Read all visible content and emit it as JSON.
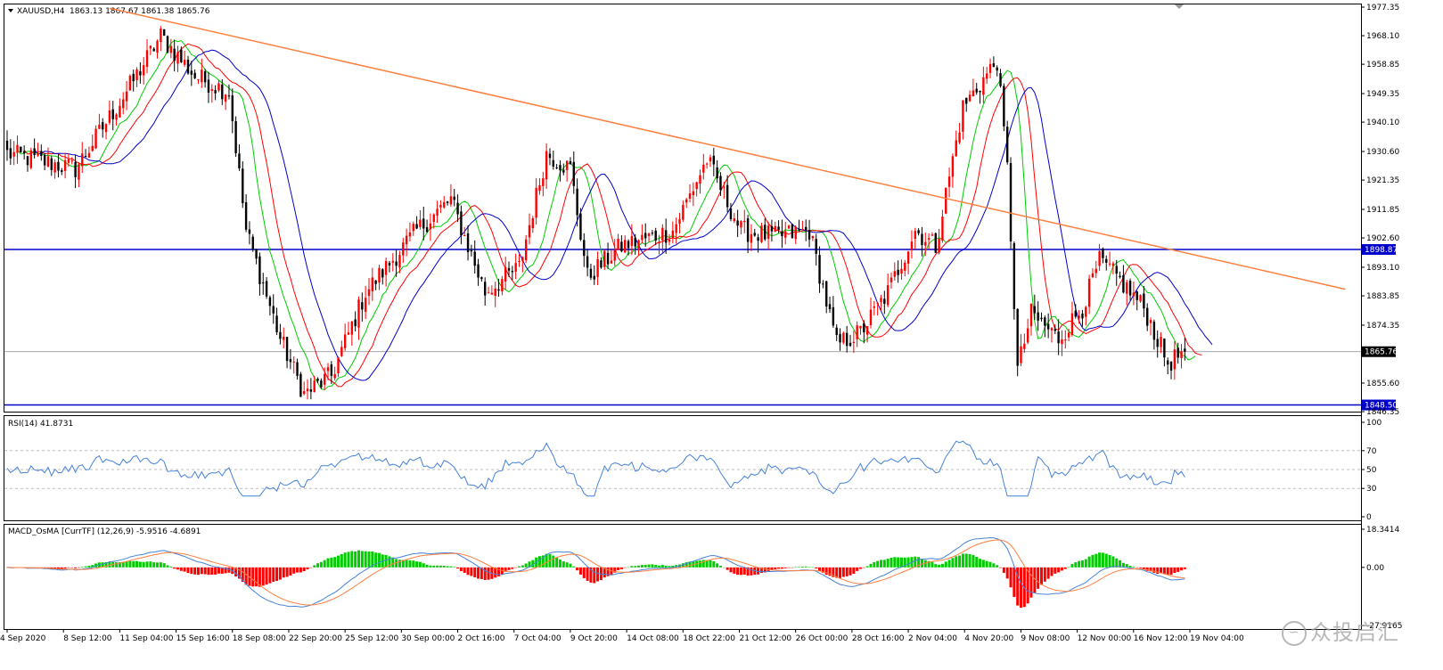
{
  "chart_data": [
    {
      "type": "candlestick",
      "title": "XAUUSD,H4",
      "ohlc_label": "1863.13 1867.67 1861.38 1865.76",
      "ylim": [
        1846.35,
        1977.35
      ],
      "y_ticks": [
        "1977.35",
        "1968.10",
        "1958.85",
        "1949.35",
        "1940.10",
        "1930.60",
        "1921.35",
        "1911.85",
        "1902.60",
        "1893.10",
        "1883.85",
        "1874.35",
        "1855.60",
        "1846.35"
      ],
      "x_ticks": [
        "4 Sep 2020",
        "8 Sep 12:00",
        "11 Sep 04:00",
        "15 Sep 16:00",
        "18 Sep 08:00",
        "22 Sep 20:00",
        "25 Sep 12:00",
        "30 Sep 00:00",
        "2 Oct 16:00",
        "7 Oct 04:00",
        "9 Oct 20:00",
        "14 Oct 08:00",
        "18 Oct 22:00",
        "21 Oct 12:00",
        "26 Oct 00:00",
        "28 Oct 16:00",
        "2 Nov 04:00",
        "4 Nov 20:00",
        "9 Nov 08:00",
        "12 Nov 00:00",
        "16 Nov 12:00",
        "19 Nov 04:00"
      ],
      "price_marks": {
        "resistance": "1898.87",
        "current": "1865.76",
        "support": "1848.50"
      },
      "key_prices": [
        {
          "x": 0,
          "price": 1930
        },
        {
          "x": 20,
          "price": 1925
        },
        {
          "x": 35,
          "price": 1950
        },
        {
          "x": 45,
          "price": 1968
        },
        {
          "x": 55,
          "price": 1955
        },
        {
          "x": 65,
          "price": 1950
        },
        {
          "x": 70,
          "price": 1905
        },
        {
          "x": 80,
          "price": 1870
        },
        {
          "x": 87,
          "price": 1852
        },
        {
          "x": 95,
          "price": 1858
        },
        {
          "x": 105,
          "price": 1885
        },
        {
          "x": 120,
          "price": 1905
        },
        {
          "x": 130,
          "price": 1915
        },
        {
          "x": 140,
          "price": 1885
        },
        {
          "x": 150,
          "price": 1893
        },
        {
          "x": 158,
          "price": 1930
        },
        {
          "x": 165,
          "price": 1925
        },
        {
          "x": 170,
          "price": 1890
        },
        {
          "x": 180,
          "price": 1900
        },
        {
          "x": 195,
          "price": 1905
        },
        {
          "x": 205,
          "price": 1928
        },
        {
          "x": 215,
          "price": 1905
        },
        {
          "x": 225,
          "price": 1903
        },
        {
          "x": 235,
          "price": 1905
        },
        {
          "x": 243,
          "price": 1868
        },
        {
          "x": 250,
          "price": 1872
        },
        {
          "x": 258,
          "price": 1885
        },
        {
          "x": 266,
          "price": 1905
        },
        {
          "x": 272,
          "price": 1900
        },
        {
          "x": 280,
          "price": 1945
        },
        {
          "x": 290,
          "price": 1960
        },
        {
          "x": 293,
          "price": 1925
        },
        {
          "x": 296,
          "price": 1860
        },
        {
          "x": 300,
          "price": 1878
        },
        {
          "x": 308,
          "price": 1870
        },
        {
          "x": 315,
          "price": 1880
        },
        {
          "x": 320,
          "price": 1895
        },
        {
          "x": 325,
          "price": 1890
        },
        {
          "x": 333,
          "price": 1880
        },
        {
          "x": 340,
          "price": 1862
        },
        {
          "x": 345,
          "price": 1865.76
        }
      ],
      "n_bars": 346,
      "trendline": {
        "start": {
          "x": 30,
          "price": 1977
        },
        "end": {
          "x": 392,
          "price": 1886
        }
      }
    },
    {
      "type": "line",
      "title": "RSI(14) 41.8731",
      "ylim": [
        0,
        100
      ],
      "y_ticks": [
        "100",
        "70",
        "50",
        "30",
        "0"
      ]
    },
    {
      "type": "bar",
      "title": "MACD_OsMA [CurrTF] (12,26,9) -5.9516 -4.6891",
      "ylim": [
        -27.9165,
        18.3414
      ],
      "y_ticks": [
        "18.3414",
        "0.00",
        "-27.9165"
      ]
    }
  ],
  "watermark": "众投启汇",
  "colors": {
    "up": "#ff0000",
    "down": "#000000",
    "ma_fast": "#00cc00",
    "ma_mid": "#ff0000",
    "ma_slow": "#0000cc",
    "trendline": "#ff7f3f",
    "level": "#0000cc",
    "rsi": "#4682d8",
    "macd_pos": "#00cc00",
    "macd_neg": "#ff0000",
    "macd_line1": "#ff7f3f",
    "macd_line2": "#4682d8"
  }
}
